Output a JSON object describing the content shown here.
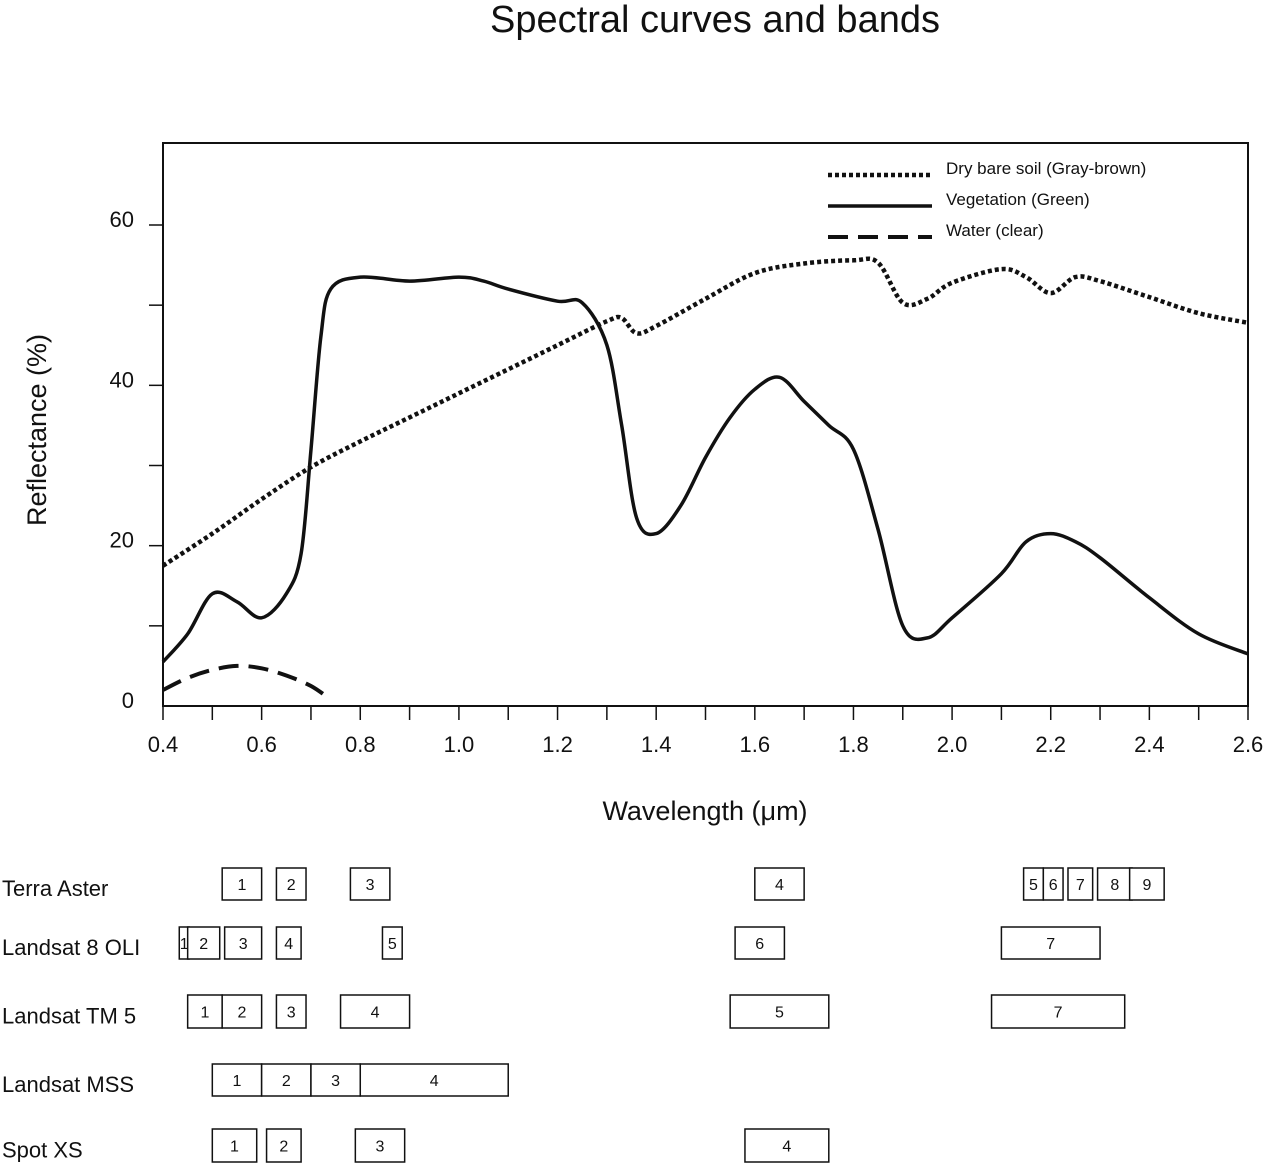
{
  "chart_data": {
    "type": "line",
    "title": "Spectral curves and bands",
    "xlabel": "Wavelength (μm)",
    "ylabel": "Reflectance (%)",
    "xlim": [
      0.4,
      2.6
    ],
    "ylim": [
      0,
      70
    ],
    "x_ticks": [
      "0.4",
      "0.6",
      "0.8",
      "1.0",
      "1.2",
      "1.4",
      "1.6",
      "1.8",
      "2.0",
      "2.2",
      "2.4",
      "2.6"
    ],
    "y_ticks": [
      "0",
      "20",
      "40",
      "60"
    ],
    "grid": false,
    "legend_position": "top-right",
    "series": [
      {
        "name": "Dry bare soil (Gray-brown)",
        "style": "dotted",
        "x": [
          0.4,
          0.5,
          0.6,
          0.7,
          0.8,
          0.9,
          1.0,
          1.1,
          1.2,
          1.3,
          1.33,
          1.36,
          1.4,
          1.5,
          1.6,
          1.7,
          1.8,
          1.85,
          1.9,
          1.95,
          2.0,
          2.1,
          2.15,
          2.2,
          2.25,
          2.3,
          2.4,
          2.5,
          2.6
        ],
        "y": [
          17.5,
          21.5,
          25.8,
          29.8,
          33.0,
          36.0,
          39.0,
          42.0,
          45.0,
          48.0,
          48.4,
          46.5,
          47.4,
          50.8,
          54.0,
          55.2,
          55.6,
          55.3,
          50.3,
          50.8,
          52.8,
          54.5,
          53.5,
          51.5,
          53.5,
          53.0,
          51.0,
          49.0,
          47.8
        ]
      },
      {
        "name": "Vegetation (Green)",
        "style": "solid",
        "x": [
          0.4,
          0.45,
          0.5,
          0.55,
          0.6,
          0.65,
          0.68,
          0.7,
          0.72,
          0.74,
          0.8,
          0.9,
          1.0,
          1.05,
          1.1,
          1.2,
          1.25,
          1.3,
          1.33,
          1.36,
          1.4,
          1.45,
          1.5,
          1.55,
          1.6,
          1.65,
          1.7,
          1.75,
          1.8,
          1.85,
          1.9,
          1.95,
          2.0,
          2.1,
          2.15,
          2.2,
          2.25,
          2.3,
          2.4,
          2.5,
          2.6
        ],
        "y": [
          5.5,
          9.0,
          14.0,
          13.0,
          11.0,
          14.0,
          19.0,
          32.0,
          46.0,
          52.0,
          53.5,
          53.0,
          53.5,
          53.0,
          52.0,
          50.5,
          50.3,
          45.0,
          35.0,
          23.5,
          21.5,
          25.0,
          31.0,
          36.0,
          39.5,
          41.0,
          38.0,
          35.0,
          32.0,
          22.0,
          10.0,
          8.5,
          11.0,
          16.5,
          20.5,
          21.5,
          20.5,
          18.5,
          13.5,
          9.0,
          6.5
        ]
      },
      {
        "name": "Water (clear)",
        "style": "dashed",
        "x": [
          0.4,
          0.45,
          0.5,
          0.55,
          0.6,
          0.65,
          0.7,
          0.74
        ],
        "y": [
          2.0,
          3.5,
          4.5,
          5.0,
          4.7,
          3.8,
          2.5,
          0.8
        ]
      }
    ],
    "band_groups": [
      {
        "sensor": "Terra Aster",
        "bands": [
          {
            "label": "1",
            "start": 0.52,
            "end": 0.6
          },
          {
            "label": "2",
            "start": 0.63,
            "end": 0.69
          },
          {
            "label": "3",
            "start": 0.78,
            "end": 0.86
          },
          {
            "label": "4",
            "start": 1.6,
            "end": 1.7
          },
          {
            "label": "5",
            "start": 2.145,
            "end": 2.185
          },
          {
            "label": "6",
            "start": 2.185,
            "end": 2.225
          },
          {
            "label": "7",
            "start": 2.235,
            "end": 2.285
          },
          {
            "label": "8",
            "start": 2.295,
            "end": 2.365
          },
          {
            "label": "9",
            "start": 2.36,
            "end": 2.43
          }
        ]
      },
      {
        "sensor": "Landsat 8 OLI",
        "bands": [
          {
            "label": "1",
            "start": 0.433,
            "end": 0.453
          },
          {
            "label": "2",
            "start": 0.45,
            "end": 0.515
          },
          {
            "label": "3",
            "start": 0.525,
            "end": 0.6
          },
          {
            "label": "4",
            "start": 0.63,
            "end": 0.68
          },
          {
            "label": "5",
            "start": 0.845,
            "end": 0.885
          },
          {
            "label": "6",
            "start": 1.56,
            "end": 1.66
          },
          {
            "label": "7",
            "start": 2.1,
            "end": 2.3
          }
        ]
      },
      {
        "sensor": "Landsat TM 5",
        "bands": [
          {
            "label": "1",
            "start": 0.45,
            "end": 0.52
          },
          {
            "label": "2",
            "start": 0.52,
            "end": 0.6
          },
          {
            "label": "3",
            "start": 0.63,
            "end": 0.69
          },
          {
            "label": "4",
            "start": 0.76,
            "end": 0.9
          },
          {
            "label": "5",
            "start": 1.55,
            "end": 1.75
          },
          {
            "label": "7",
            "start": 2.08,
            "end": 2.35
          }
        ]
      },
      {
        "sensor": "Landsat MSS",
        "bands": [
          {
            "label": "1",
            "start": 0.5,
            "end": 0.6
          },
          {
            "label": "2",
            "start": 0.6,
            "end": 0.7
          },
          {
            "label": "3",
            "start": 0.7,
            "end": 0.8
          },
          {
            "label": "4",
            "start": 0.8,
            "end": 1.1
          }
        ]
      },
      {
        "sensor": "Spot XS",
        "bands": [
          {
            "label": "1",
            "start": 0.5,
            "end": 0.59
          },
          {
            "label": "2",
            "start": 0.61,
            "end": 0.68
          },
          {
            "label": "3",
            "start": 0.79,
            "end": 0.89
          },
          {
            "label": "4",
            "start": 1.58,
            "end": 1.75
          }
        ]
      }
    ]
  }
}
